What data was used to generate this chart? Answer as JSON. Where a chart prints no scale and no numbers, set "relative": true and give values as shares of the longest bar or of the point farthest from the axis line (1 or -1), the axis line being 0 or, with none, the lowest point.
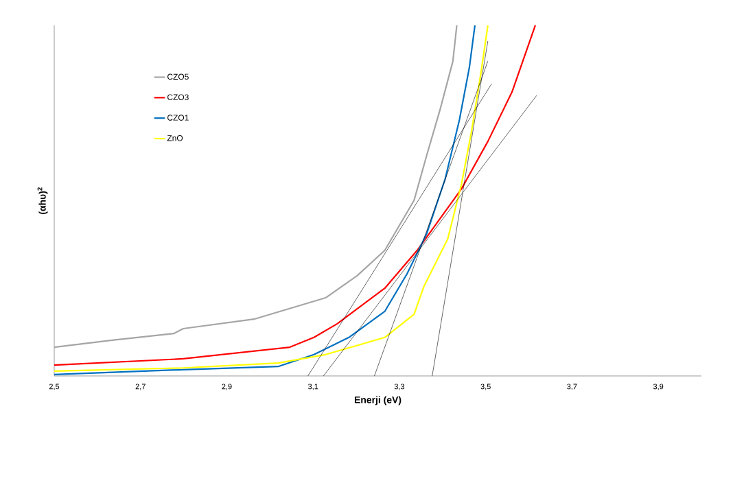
{
  "chart_data": {
    "type": "line",
    "relative": true,
    "xlabel": "Enerji (eV)",
    "ylabel": "(αhυ)$^{2}$",
    "xlim": [
      2.5,
      4.0
    ],
    "xticks": [
      {
        "value": 2.5,
        "label": "2,5"
      },
      {
        "value": 2.7,
        "label": "2,7"
      },
      {
        "value": 2.9,
        "label": "2,9"
      },
      {
        "value": 3.1,
        "label": "3,1"
      },
      {
        "value": 3.3,
        "label": "3,3"
      },
      {
        "value": 3.5,
        "label": "3,5"
      },
      {
        "value": 3.7,
        "label": "3,7"
      },
      {
        "value": 3.9,
        "label": "3,9"
      }
    ],
    "tick_labels": "x",
    "legend": "top left",
    "series": [
      {
        "name": "CZO5",
        "color": "#a5a5a5",
        "x": [
          2.5,
          2.634,
          2.777,
          2.799,
          2.963,
          3.129,
          3.202,
          3.266,
          3.334,
          3.363,
          3.395,
          3.424,
          3.433
        ],
        "values": [
          0.082,
          0.102,
          0.121,
          0.135,
          0.162,
          0.223,
          0.286,
          0.358,
          0.501,
          0.628,
          0.763,
          0.898,
          1.0
        ]
      },
      {
        "name": "CZO3",
        "color": "#ff0000",
        "x": [
          2.5,
          2.799,
          3.046,
          3.102,
          3.156,
          3.266,
          3.341,
          3.444,
          3.505,
          3.561,
          3.615
        ],
        "values": [
          0.031,
          0.049,
          0.082,
          0.11,
          0.149,
          0.25,
          0.358,
          0.534,
          0.669,
          0.81,
          1.0
        ]
      },
      {
        "name": "CZO1",
        "color": "#0070c0",
        "x": [
          2.5,
          2.799,
          3.019,
          3.102,
          3.183,
          3.266,
          3.318,
          3.363,
          3.406,
          3.439,
          3.462,
          3.475
        ],
        "values": [
          0.004,
          0.018,
          0.027,
          0.061,
          0.11,
          0.184,
          0.292,
          0.405,
          0.562,
          0.73,
          0.879,
          1.0
        ]
      },
      {
        "name": "ZnO",
        "color": "#ffff00",
        "x": [
          2.5,
          2.799,
          3.019,
          3.129,
          3.266,
          3.334,
          3.357,
          3.412,
          3.444,
          3.467,
          3.489,
          3.505
        ],
        "values": [
          0.014,
          0.023,
          0.037,
          0.061,
          0.11,
          0.176,
          0.256,
          0.391,
          0.548,
          0.697,
          0.865,
          1.0
        ]
      },
      {
        "type": "line",
        "color": "#000000",
        "x": [
          3.088,
          3.514
        ],
        "values": [
          0,
          0.834
        ]
      },
      {
        "type": "line",
        "color": "#000000",
        "x": [
          3.124,
          3.618
        ],
        "values": [
          0,
          0.8
        ]
      },
      {
        "type": "line",
        "color": "#000000",
        "x": [
          3.242,
          3.505
        ],
        "values": [
          0,
          0.898
        ]
      },
      {
        "type": "line",
        "color": "#000000",
        "x": [
          3.376,
          3.505
        ],
        "values": [
          0,
          0.955
        ]
      }
    ]
  }
}
